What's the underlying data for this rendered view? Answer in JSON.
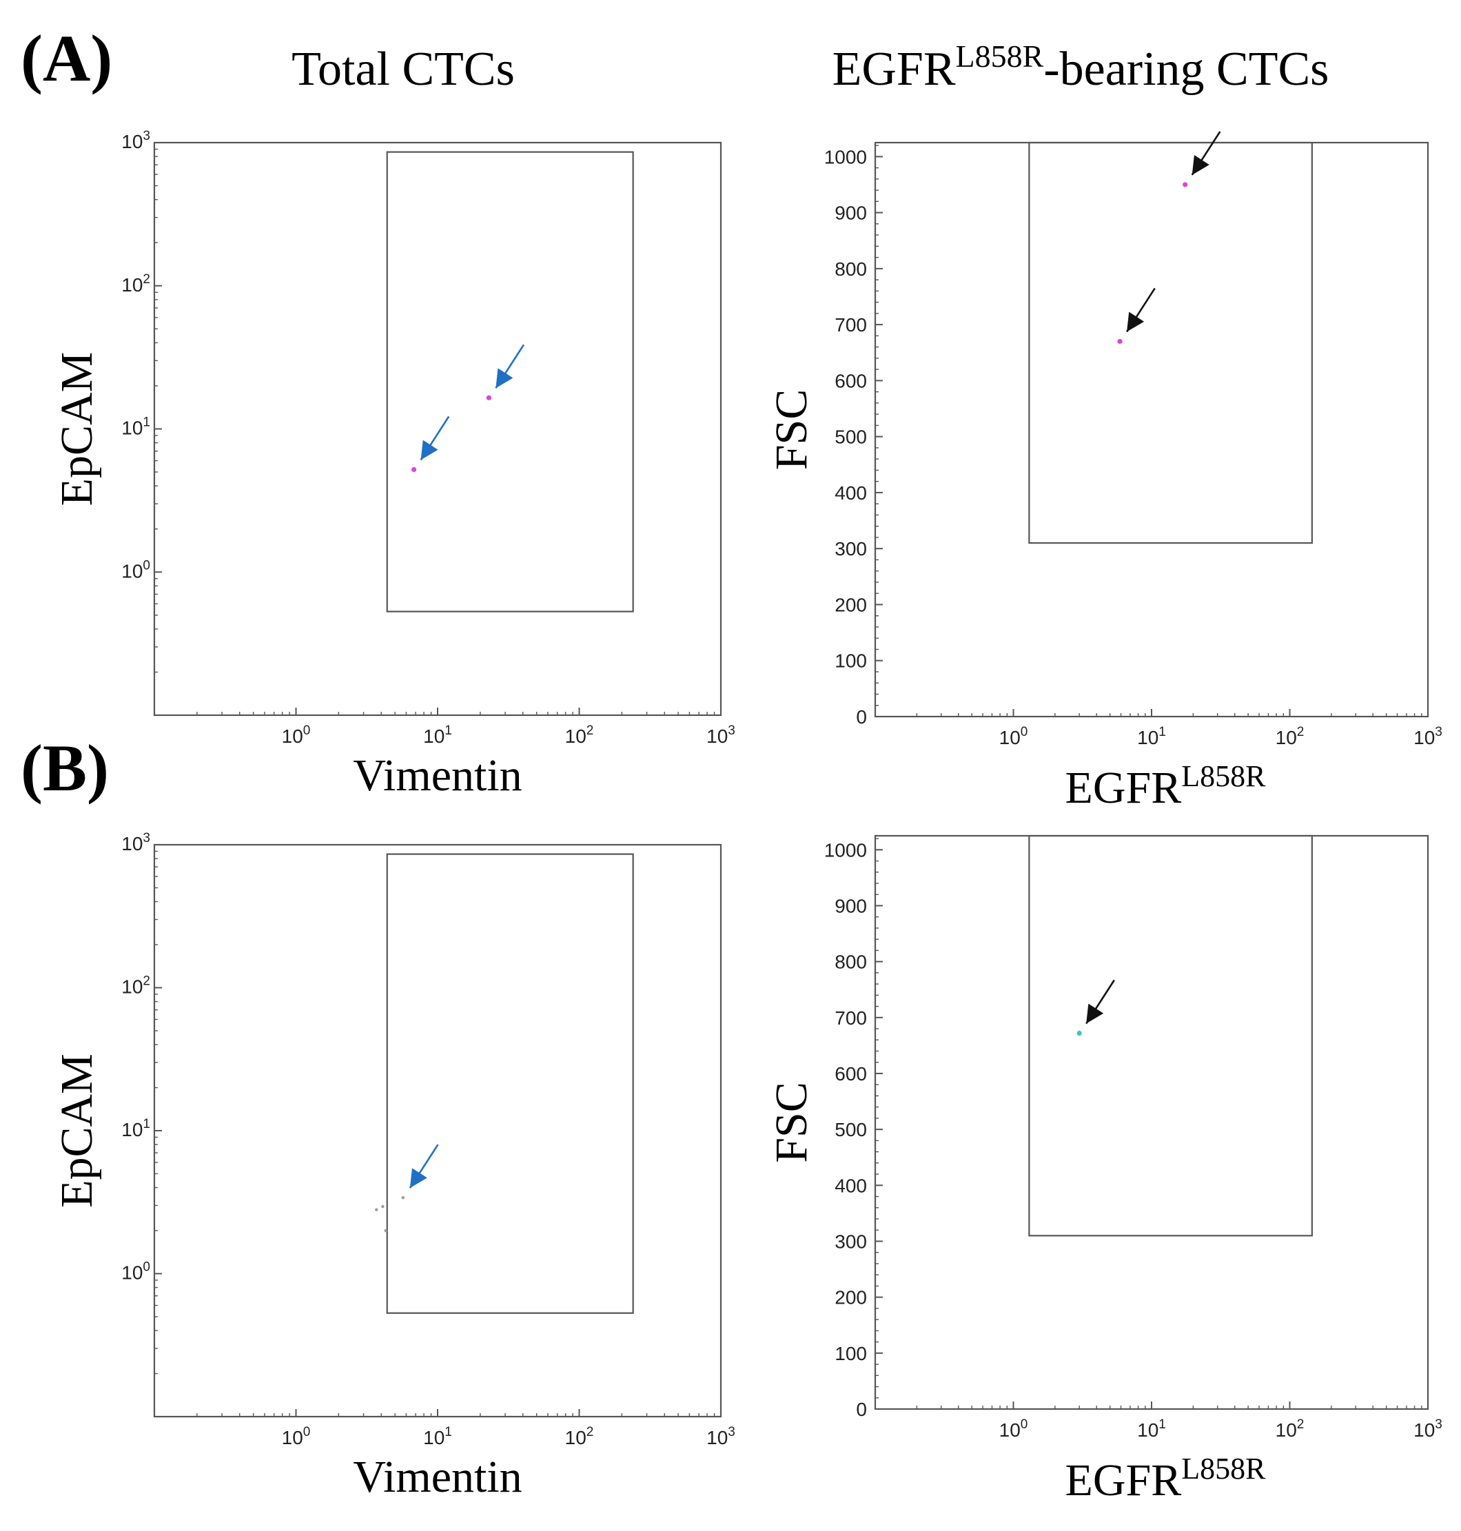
{
  "figure": {
    "panel_A_label": "(A)",
    "panel_B_label": "(B)",
    "col_left_title": "Total CTCs",
    "col_right_title_main": "EGFR",
    "col_right_title_sup": "L858R",
    "col_right_title_suffix": "-bearing CTCs"
  },
  "colors": {
    "axis": "#555555",
    "gate": "#555555",
    "blue_arrow": "#1f6fc5",
    "black_arrow": "#111111",
    "magenta_point": "#e040e0",
    "cyan_point": "#33c6c6",
    "gray_point": "#9a9a9a"
  },
  "chart_data": [
    {
      "id": "A-left",
      "type": "scatter",
      "panel": "A",
      "xlabel": "Vimentin",
      "ylabel": "EpCAM",
      "xscale": "log",
      "yscale": "log",
      "xlim": [
        0.1,
        1000
      ],
      "ylim": [
        0.1,
        1000
      ],
      "xticks": [
        {
          "base": "10",
          "exp": "0"
        },
        {
          "base": "10",
          "exp": "1"
        },
        {
          "base": "10",
          "exp": "2"
        },
        {
          "base": "10",
          "exp": "3"
        }
      ],
      "yticks": [
        {
          "base": "10",
          "exp": "0"
        },
        {
          "base": "10",
          "exp": "1"
        },
        {
          "base": "10",
          "exp": "2"
        },
        {
          "base": "10",
          "exp": "3"
        }
      ],
      "gate": {
        "x": [
          4.4,
          240
        ],
        "y": [
          0.53,
          860
        ]
      },
      "points": [
        {
          "x": 6.8,
          "y": 5.2,
          "color": "magenta"
        },
        {
          "x": 23,
          "y": 16.5,
          "color": "magenta"
        }
      ],
      "arrows": [
        {
          "x": 6.8,
          "y": 5.2,
          "color": "blue"
        },
        {
          "x": 23,
          "y": 16.5,
          "color": "blue"
        }
      ]
    },
    {
      "id": "A-right",
      "type": "scatter",
      "panel": "A",
      "xlabel_main": "EGFR",
      "xlabel_sup": "L858R",
      "ylabel": "FSC",
      "xscale": "log",
      "yscale": "linear",
      "xlim": [
        0.1,
        1000
      ],
      "ylim": [
        0,
        1025
      ],
      "xticks": [
        {
          "base": "10",
          "exp": "0"
        },
        {
          "base": "10",
          "exp": "1"
        },
        {
          "base": "10",
          "exp": "2"
        },
        {
          "base": "10",
          "exp": "3"
        }
      ],
      "yticks": [
        "0",
        "100",
        "200",
        "300",
        "400",
        "500",
        "600",
        "700",
        "800",
        "900",
        "1000"
      ],
      "gate": {
        "x": [
          1.3,
          145
        ],
        "y": [
          310,
          1025
        ]
      },
      "points": [
        {
          "x": 17.5,
          "y": 950,
          "color": "magenta"
        },
        {
          "x": 5.9,
          "y": 670,
          "color": "magenta"
        }
      ],
      "arrows": [
        {
          "x": 17.5,
          "y": 950,
          "color": "black"
        },
        {
          "x": 5.9,
          "y": 670,
          "color": "black"
        }
      ]
    },
    {
      "id": "B-left",
      "type": "scatter",
      "panel": "B",
      "xlabel": "Vimentin",
      "ylabel": "EpCAM",
      "xscale": "log",
      "yscale": "log",
      "xlim": [
        0.1,
        1000
      ],
      "ylim": [
        0.1,
        1000
      ],
      "xticks": [
        {
          "base": "10",
          "exp": "0"
        },
        {
          "base": "10",
          "exp": "1"
        },
        {
          "base": "10",
          "exp": "2"
        },
        {
          "base": "10",
          "exp": "3"
        }
      ],
      "yticks": [
        {
          "base": "10",
          "exp": "0"
        },
        {
          "base": "10",
          "exp": "1"
        },
        {
          "base": "10",
          "exp": "2"
        },
        {
          "base": "10",
          "exp": "3"
        }
      ],
      "gate": {
        "x": [
          4.4,
          240
        ],
        "y": [
          0.53,
          860
        ]
      },
      "points": [
        {
          "x": 3.7,
          "y": 2.8,
          "color": "gray"
        },
        {
          "x": 4.1,
          "y": 2.95,
          "color": "gray"
        },
        {
          "x": 4.3,
          "y": 2.0,
          "color": "gray"
        },
        {
          "x": 5.7,
          "y": 3.4,
          "color": "gray"
        }
      ],
      "arrows": [
        {
          "x": 5.7,
          "y": 3.4,
          "color": "blue"
        }
      ]
    },
    {
      "id": "B-right",
      "type": "scatter",
      "panel": "B",
      "xlabel_main": "EGFR",
      "xlabel_sup": "L858R",
      "ylabel": "FSC",
      "xscale": "log",
      "yscale": "linear",
      "xlim": [
        0.1,
        1000
      ],
      "ylim": [
        0,
        1025
      ],
      "xticks": [
        {
          "base": "10",
          "exp": "0"
        },
        {
          "base": "10",
          "exp": "1"
        },
        {
          "base": "10",
          "exp": "2"
        },
        {
          "base": "10",
          "exp": "3"
        }
      ],
      "yticks": [
        "0",
        "100",
        "200",
        "300",
        "400",
        "500",
        "600",
        "700",
        "800",
        "900",
        "1000"
      ],
      "gate": {
        "x": [
          1.3,
          145
        ],
        "y": [
          310,
          1025
        ]
      },
      "points": [
        {
          "x": 3.0,
          "y": 672,
          "color": "cyan"
        }
      ],
      "arrows": [
        {
          "x": 3.0,
          "y": 672,
          "color": "black"
        }
      ]
    }
  ]
}
